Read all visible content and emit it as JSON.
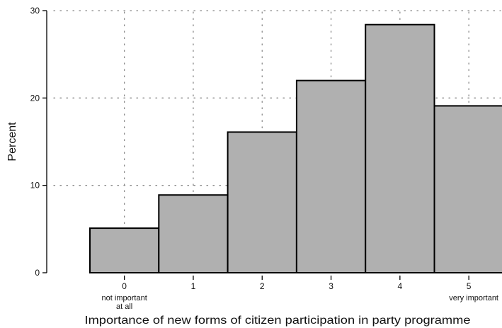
{
  "chart_data": {
    "type": "bar",
    "title": "",
    "xlabel": "Importance of new forms of citizen participation in party programme",
    "ylabel": "Percent",
    "categories": [
      "0",
      "1",
      "2",
      "3",
      "4",
      "5"
    ],
    "category_sublabels": {
      "0": [
        "not important",
        "at all"
      ],
      "5": [
        "very important"
      ]
    },
    "values": [
      5.1,
      8.9,
      16.1,
      22.0,
      28.4,
      19.1
    ],
    "ylim": [
      0,
      30
    ],
    "yticks": [
      "0",
      "10",
      "20",
      "30"
    ],
    "grid": true,
    "colors": {
      "bar_fill": "#b0b0b0",
      "bar_stroke": "#000000",
      "grid": "#888888"
    }
  }
}
